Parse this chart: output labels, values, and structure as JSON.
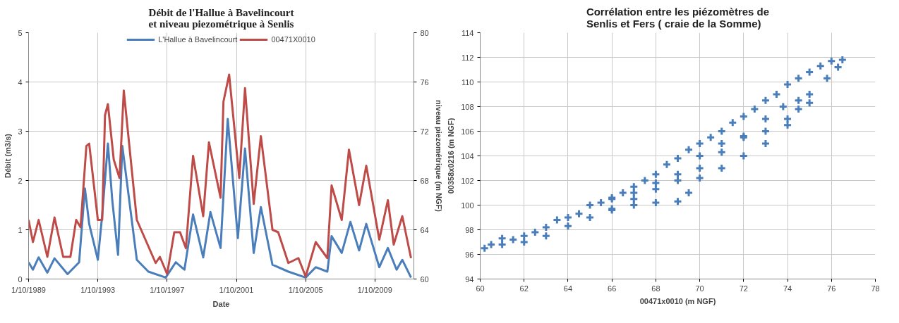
{
  "chart_data": [
    {
      "type": "line",
      "title": "Débit de l'Hallue à Bavelincourt et niveau piezométrique à Senlis",
      "xlabel": "Date",
      "ylabel": "Débit (m3/s)",
      "y2label": "niveau piezométrique (m NGF)",
      "xlim": [
        "1989-10-01",
        "2011-12-31"
      ],
      "xticks": [
        {
          "value": "1989-10-01",
          "label": "1/10/1989"
        },
        {
          "value": "1993-10-01",
          "label": "1/10/1993"
        },
        {
          "value": "1997-10-01",
          "label": "1/10/1997"
        },
        {
          "value": "2001-10-01",
          "label": "1/10/2001"
        },
        {
          "value": "2005-10-01",
          "label": "1/10/2005"
        },
        {
          "value": "2009-10-01",
          "label": "1/10/2009"
        }
      ],
      "ylim": [
        0,
        5
      ],
      "yticks": [
        0,
        1,
        2,
        3,
        4,
        5
      ],
      "y2lim": [
        60,
        80
      ],
      "y2ticks": [
        60,
        64,
        68,
        72,
        76,
        80
      ],
      "grid": true,
      "legend": "top",
      "line_style": "solid",
      "series": [
        {
          "name": "L'Hallue à Bavelincourt",
          "color": "#4a7ebb",
          "x": [
            "1989-10",
            "1990-01",
            "1990-05",
            "1990-11",
            "1991-04",
            "1992-01",
            "1992-09",
            "1993-01",
            "1993-04",
            "1993-10",
            "1994-01",
            "1994-05",
            "1994-08",
            "1994-12",
            "1995-03",
            "1996-01",
            "1996-09",
            "1997-09",
            "1998-04",
            "1998-10",
            "1999-04",
            "1999-11",
            "2000-04",
            "2000-11",
            "2001-04",
            "2001-11",
            "2002-04",
            "2002-10",
            "2003-03",
            "2003-11",
            "2004-10",
            "2005-10",
            "2006-05",
            "2007-01",
            "2007-04",
            "2007-11",
            "2008-05",
            "2008-11",
            "2009-04",
            "2010-01",
            "2010-07",
            "2011-01",
            "2011-05",
            "2011-11"
          ],
          "values": [
            0.34,
            0.19,
            0.44,
            0.13,
            0.42,
            0.1,
            0.34,
            1.84,
            1.12,
            0.39,
            1.3,
            2.75,
            1.6,
            0.49,
            2.7,
            0.39,
            0.15,
            0.03,
            0.34,
            0.19,
            1.31,
            0.44,
            1.36,
            0.63,
            3.25,
            0.83,
            2.65,
            0.53,
            1.46,
            0.29,
            0.15,
            0.03,
            0.24,
            0.15,
            0.87,
            0.53,
            1.16,
            0.58,
            1.12,
            0.24,
            0.63,
            0.19,
            0.39,
            0.03
          ]
        },
        {
          "name": "00471X0010",
          "color": "#be4b48",
          "axis": "y2",
          "x": [
            "1989-10",
            "1990-01",
            "1990-05",
            "1990-11",
            "1991-04",
            "1991-10",
            "1992-03",
            "1992-07",
            "1992-10",
            "1993-02",
            "1993-04",
            "1993-10",
            "1994-01",
            "1994-03",
            "1994-05",
            "1994-09",
            "1995-01",
            "1995-04",
            "1996-01",
            "1997-02",
            "1997-05",
            "1997-10",
            "1998-03",
            "1998-07",
            "1998-11",
            "1999-04",
            "1999-11",
            "2000-03",
            "2000-11",
            "2001-01",
            "2001-05",
            "2001-12",
            "2002-04",
            "2002-10",
            "2003-03",
            "2003-11",
            "2004-03",
            "2004-10",
            "2005-05",
            "2005-10",
            "2006-05",
            "2007-01",
            "2007-04",
            "2007-11",
            "2008-04",
            "2008-11",
            "2009-04",
            "2010-01",
            "2010-07",
            "2010-11",
            "2011-05",
            "2011-11"
          ],
          "values": [
            64.8,
            63.0,
            64.8,
            61.8,
            65.0,
            61.8,
            61.8,
            64.8,
            64.2,
            70.8,
            71.0,
            64.8,
            64.8,
            73.3,
            74.2,
            69.7,
            68.2,
            75.3,
            64.8,
            61.3,
            61.8,
            60.4,
            63.8,
            63.8,
            62.5,
            70.0,
            65.1,
            71.1,
            66.6,
            74.4,
            76.6,
            68.2,
            75.5,
            66.1,
            71.6,
            64.0,
            63.8,
            61.3,
            61.7,
            60.2,
            63.0,
            61.7,
            67.6,
            64.8,
            70.5,
            66.0,
            69.2,
            63.2,
            66.4,
            62.8,
            65.1,
            61.7
          ]
        }
      ]
    },
    {
      "type": "scatter",
      "title": "Corrélation entre les piézomètres de Senlis et Fers ( craie de la Somme)",
      "xlabel": "00471x0010 (m NGF)",
      "ylabel": "00358x0216 (m NGF)",
      "xlim": [
        60,
        78
      ],
      "xticks": [
        60,
        62,
        64,
        66,
        68,
        70,
        72,
        74,
        76,
        78
      ],
      "ylim": [
        94,
        114
      ],
      "yticks": [
        94,
        96,
        98,
        100,
        102,
        104,
        106,
        108,
        110,
        112,
        114
      ],
      "grid": true,
      "marker": "cross",
      "series": [
        {
          "color": "#4a7ebb",
          "x": [
            60.2,
            60.5,
            61,
            61.5,
            62,
            62.5,
            63,
            63.5,
            64,
            64.5,
            65,
            65.5,
            66,
            66.5,
            67,
            67.5,
            68,
            68.5,
            69,
            69.5,
            70,
            70.5,
            71,
            71.5,
            72,
            72.5,
            73,
            73.5,
            74,
            74.5,
            75,
            75.5,
            76,
            76.5,
            76.3,
            75.8,
            75,
            74.5,
            73.8,
            73,
            72,
            71,
            70,
            69,
            68,
            67,
            66,
            65,
            64,
            63,
            62,
            61,
            75,
            74.5,
            74,
            73,
            72,
            71,
            70,
            69.5,
            69,
            68,
            67,
            66,
            66,
            67,
            68,
            69,
            70,
            71,
            72,
            73,
            74
          ],
          "values": [
            96.5,
            96.8,
            97.3,
            97.2,
            97.5,
            97.8,
            98.2,
            98.8,
            99.0,
            99.3,
            100,
            100.2,
            100.6,
            101,
            101.5,
            102,
            102.5,
            103.3,
            103.8,
            104.5,
            105,
            105.5,
            106,
            106.7,
            107.2,
            107.8,
            108.5,
            109,
            109.8,
            110.3,
            110.8,
            111.3,
            111.7,
            111.8,
            111.2,
            110.3,
            109.0,
            108.5,
            108,
            107,
            105.5,
            104.3,
            103,
            102,
            101.3,
            100.5,
            99.7,
            99,
            98.3,
            97.5,
            97,
            96.8,
            108.3,
            107.8,
            106.5,
            105,
            104,
            103,
            102.2,
            101,
            100.3,
            100.2,
            100,
            99.6,
            100.5,
            101,
            101.8,
            102.5,
            104,
            105,
            105.6,
            106,
            107
          ]
        }
      ]
    }
  ]
}
